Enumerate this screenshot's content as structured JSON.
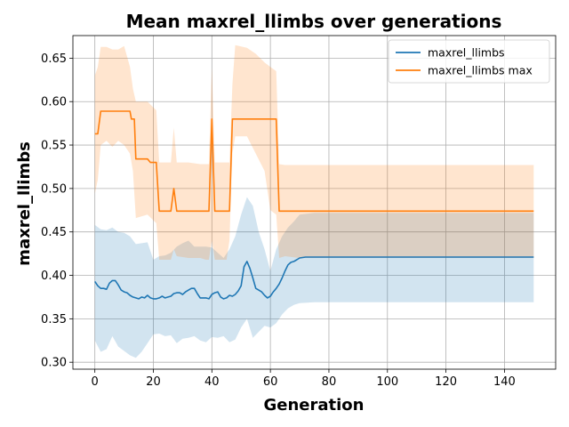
{
  "chart_data": {
    "type": "line",
    "title": "Mean maxrel_llimbs over generations",
    "xlabel": "Generation",
    "ylabel": "maxrel_llimbs",
    "xlim": [
      -7.5,
      157.5
    ],
    "ylim": [
      0.292,
      0.676
    ],
    "xticks": [
      0,
      20,
      40,
      60,
      80,
      100,
      120,
      140
    ],
    "yticks": [
      0.3,
      0.35,
      0.4,
      0.45,
      0.5,
      0.55,
      0.6,
      0.65
    ],
    "grid": true,
    "legend_position": "top-right",
    "colors": {
      "mean": "#1f77b4",
      "max": "#ff7f0e"
    },
    "series": [
      {
        "name": "maxrel_llimbs",
        "color": "#1f77b4",
        "points": [
          [
            0,
            0.393
          ],
          [
            1,
            0.388
          ],
          [
            2,
            0.385
          ],
          [
            3,
            0.385
          ],
          [
            4,
            0.384
          ],
          [
            5,
            0.391
          ],
          [
            6,
            0.394
          ],
          [
            7,
            0.394
          ],
          [
            8,
            0.389
          ],
          [
            9,
            0.383
          ],
          [
            10,
            0.381
          ],
          [
            11,
            0.38
          ],
          [
            12,
            0.377
          ],
          [
            13,
            0.375
          ],
          [
            14,
            0.374
          ],
          [
            15,
            0.373
          ],
          [
            16,
            0.375
          ],
          [
            17,
            0.374
          ],
          [
            18,
            0.377
          ],
          [
            19,
            0.374
          ],
          [
            20,
            0.373
          ],
          [
            21,
            0.373
          ],
          [
            22,
            0.374
          ],
          [
            23,
            0.376
          ],
          [
            24,
            0.374
          ],
          [
            25,
            0.375
          ],
          [
            26,
            0.376
          ],
          [
            27,
            0.379
          ],
          [
            28,
            0.38
          ],
          [
            29,
            0.38
          ],
          [
            30,
            0.378
          ],
          [
            31,
            0.381
          ],
          [
            32,
            0.383
          ],
          [
            33,
            0.385
          ],
          [
            34,
            0.385
          ],
          [
            35,
            0.379
          ],
          [
            36,
            0.374
          ],
          [
            37,
            0.374
          ],
          [
            38,
            0.374
          ],
          [
            39,
            0.373
          ],
          [
            40,
            0.378
          ],
          [
            41,
            0.38
          ],
          [
            42,
            0.381
          ],
          [
            43,
            0.375
          ],
          [
            44,
            0.373
          ],
          [
            45,
            0.374
          ],
          [
            46,
            0.377
          ],
          [
            47,
            0.376
          ],
          [
            48,
            0.378
          ],
          [
            49,
            0.382
          ],
          [
            50,
            0.388
          ],
          [
            51,
            0.41
          ],
          [
            52,
            0.416
          ],
          [
            53,
            0.408
          ],
          [
            54,
            0.397
          ],
          [
            55,
            0.385
          ],
          [
            56,
            0.383
          ],
          [
            57,
            0.381
          ],
          [
            58,
            0.377
          ],
          [
            59,
            0.374
          ],
          [
            60,
            0.376
          ],
          [
            61,
            0.381
          ],
          [
            62,
            0.385
          ],
          [
            63,
            0.39
          ],
          [
            64,
            0.397
          ],
          [
            65,
            0.405
          ],
          [
            66,
            0.412
          ],
          [
            67,
            0.415
          ],
          [
            68,
            0.416
          ],
          [
            69,
            0.418
          ],
          [
            70,
            0.42
          ],
          [
            72,
            0.421
          ],
          [
            75,
            0.421
          ],
          [
            77,
            0.421
          ],
          [
            80,
            0.421
          ],
          [
            90,
            0.421
          ],
          [
            100,
            0.421
          ],
          [
            110,
            0.421
          ],
          [
            120,
            0.421
          ],
          [
            130,
            0.421
          ],
          [
            140,
            0.421
          ],
          [
            150,
            0.421
          ]
        ],
        "band": [
          [
            0,
            0.325,
            0.458
          ],
          [
            2,
            0.312,
            0.453
          ],
          [
            4,
            0.315,
            0.452
          ],
          [
            6,
            0.33,
            0.455
          ],
          [
            8,
            0.318,
            0.45
          ],
          [
            10,
            0.313,
            0.449
          ],
          [
            12,
            0.308,
            0.445
          ],
          [
            14,
            0.305,
            0.436
          ],
          [
            16,
            0.312,
            0.437
          ],
          [
            18,
            0.322,
            0.438
          ],
          [
            20,
            0.332,
            0.418
          ],
          [
            22,
            0.333,
            0.422
          ],
          [
            24,
            0.33,
            0.423
          ],
          [
            26,
            0.331,
            0.426
          ],
          [
            28,
            0.322,
            0.433
          ],
          [
            30,
            0.327,
            0.437
          ],
          [
            32,
            0.328,
            0.44
          ],
          [
            34,
            0.33,
            0.433
          ],
          [
            36,
            0.325,
            0.433
          ],
          [
            38,
            0.323,
            0.433
          ],
          [
            40,
            0.329,
            0.432
          ],
          [
            42,
            0.328,
            0.426
          ],
          [
            44,
            0.33,
            0.42
          ],
          [
            46,
            0.323,
            0.43
          ],
          [
            48,
            0.326,
            0.445
          ],
          [
            50,
            0.34,
            0.47
          ],
          [
            52,
            0.35,
            0.49
          ],
          [
            54,
            0.328,
            0.48
          ],
          [
            56,
            0.335,
            0.45
          ],
          [
            58,
            0.342,
            0.43
          ],
          [
            60,
            0.34,
            0.405
          ],
          [
            62,
            0.345,
            0.43
          ],
          [
            64,
            0.355,
            0.445
          ],
          [
            66,
            0.362,
            0.455
          ],
          [
            68,
            0.366,
            0.462
          ],
          [
            70,
            0.368,
            0.47
          ],
          [
            75,
            0.369,
            0.472
          ],
          [
            80,
            0.369,
            0.472
          ],
          [
            150,
            0.369,
            0.472
          ]
        ]
      },
      {
        "name": "maxrel_llimbs max",
        "color": "#ff7f0e",
        "points": [
          [
            0,
            0.563
          ],
          [
            1,
            0.563
          ],
          [
            2,
            0.589
          ],
          [
            3,
            0.589
          ],
          [
            12,
            0.589
          ],
          [
            12.5,
            0.58
          ],
          [
            13.5,
            0.58
          ],
          [
            14,
            0.534
          ],
          [
            18,
            0.534
          ],
          [
            19,
            0.53
          ],
          [
            21,
            0.53
          ],
          [
            22,
            0.474
          ],
          [
            26,
            0.474
          ],
          [
            27,
            0.5
          ],
          [
            28,
            0.474
          ],
          [
            39,
            0.474
          ],
          [
            40,
            0.58
          ],
          [
            41,
            0.474
          ],
          [
            46,
            0.474
          ],
          [
            47,
            0.58
          ],
          [
            62,
            0.58
          ],
          [
            63,
            0.474
          ],
          [
            150,
            0.474
          ]
        ],
        "band": [
          [
            0,
            0.494,
            0.63
          ],
          [
            1,
            0.51,
            0.64
          ],
          [
            2,
            0.55,
            0.663
          ],
          [
            4,
            0.555,
            0.663
          ],
          [
            6,
            0.548,
            0.66
          ],
          [
            8,
            0.555,
            0.66
          ],
          [
            10,
            0.55,
            0.664
          ],
          [
            12,
            0.54,
            0.64
          ],
          [
            13,
            0.52,
            0.615
          ],
          [
            14,
            0.466,
            0.6
          ],
          [
            18,
            0.47,
            0.6
          ],
          [
            21,
            0.46,
            0.59
          ],
          [
            22,
            0.418,
            0.53
          ],
          [
            26,
            0.418,
            0.53
          ],
          [
            27,
            0.43,
            0.57
          ],
          [
            28,
            0.422,
            0.53
          ],
          [
            32,
            0.42,
            0.53
          ],
          [
            36,
            0.42,
            0.528
          ],
          [
            38,
            0.418,
            0.528
          ],
          [
            39,
            0.418,
            0.528
          ],
          [
            40,
            0.44,
            0.64
          ],
          [
            41,
            0.418,
            0.53
          ],
          [
            45,
            0.418,
            0.53
          ],
          [
            46,
            0.44,
            0.53
          ],
          [
            47,
            0.54,
            0.62
          ],
          [
            48,
            0.56,
            0.665
          ],
          [
            52,
            0.56,
            0.662
          ],
          [
            55,
            0.54,
            0.655
          ],
          [
            58,
            0.52,
            0.645
          ],
          [
            60,
            0.475,
            0.64
          ],
          [
            62,
            0.47,
            0.635
          ],
          [
            63,
            0.42,
            0.528
          ],
          [
            65,
            0.422,
            0.527
          ],
          [
            70,
            0.42,
            0.527
          ],
          [
            150,
            0.42,
            0.527
          ]
        ]
      }
    ]
  }
}
